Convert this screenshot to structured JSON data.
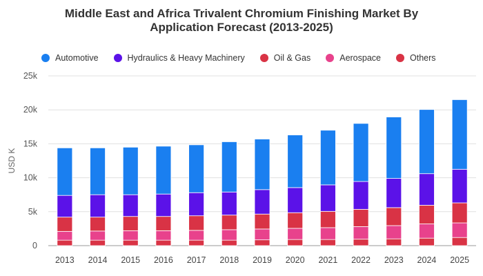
{
  "title_line1": "Middle East and Africa Trivalent Chromium Finishing Market By",
  "title_line2": "Application Forecast (2013-2025)",
  "chart_data": {
    "type": "bar",
    "stacked": true,
    "title": "Middle East and Africa Trivalent Chromium Finishing Market By Application Forecast (2013-2025)",
    "ylabel": "USD K",
    "xlabel": "",
    "ylim": [
      0,
      25000
    ],
    "yticks": [
      0,
      5000,
      10000,
      15000,
      20000,
      25000
    ],
    "ytick_labels": [
      "0",
      "5k",
      "10k",
      "15k",
      "20k",
      "25k"
    ],
    "grid": true,
    "legend_position": "top",
    "categories": [
      "2013",
      "2014",
      "2015",
      "2016",
      "2017",
      "2018",
      "2019",
      "2020",
      "2021",
      "2022",
      "2023",
      "2024",
      "2025"
    ],
    "series": [
      {
        "name": "Others",
        "color": "#d93345",
        "values": [
          800,
          800,
          800,
          800,
          800,
          800,
          850,
          900,
          900,
          950,
          1000,
          1100,
          1200
        ]
      },
      {
        "name": "Aerospace",
        "color": "#e8428c",
        "values": [
          1300,
          1350,
          1400,
          1400,
          1450,
          1550,
          1600,
          1650,
          1750,
          1850,
          1950,
          2100,
          2150
        ]
      },
      {
        "name": "Oil & Gas",
        "color": "#d93345",
        "values": [
          2100,
          2050,
          2100,
          2100,
          2150,
          2150,
          2200,
          2300,
          2400,
          2550,
          2650,
          2750,
          2950
        ]
      },
      {
        "name": "Hydraulics & Heavy Machinery",
        "color": "#5b12e8",
        "values": [
          3200,
          3300,
          3200,
          3300,
          3400,
          3400,
          3600,
          3700,
          3900,
          4100,
          4300,
          4650,
          4950
        ]
      },
      {
        "name": "Automotive",
        "color": "#1a7ff0",
        "values": [
          7000,
          6900,
          7000,
          7050,
          7050,
          7400,
          7450,
          7750,
          8050,
          8550,
          9050,
          9450,
          10250
        ]
      }
    ],
    "legend": [
      {
        "name": "Automotive",
        "color": "#1a7ff0"
      },
      {
        "name": "Hydraulics & Heavy Machinery",
        "color": "#5b12e8"
      },
      {
        "name": "Oil & Gas",
        "color": "#d93345"
      },
      {
        "name": "Aerospace",
        "color": "#e8428c"
      },
      {
        "name": "Others",
        "color": "#d93345"
      }
    ]
  }
}
